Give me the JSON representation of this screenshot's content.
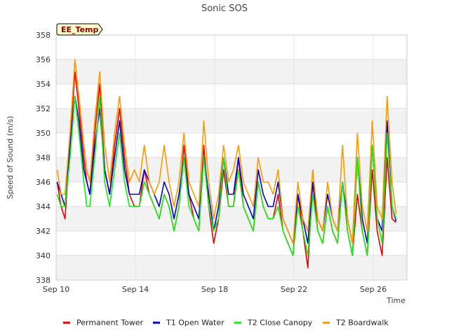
{
  "chart_data": {
    "type": "line",
    "title": "Sonic SOS",
    "badge": "EE_Temp",
    "xlabel": "Time",
    "ylabel": "Speed of Sound (m/s)",
    "xlim": [
      0,
      17.7
    ],
    "ylim": [
      338,
      358
    ],
    "yticks": [
      338,
      340,
      342,
      344,
      346,
      348,
      350,
      352,
      354,
      356,
      358
    ],
    "xticks": [
      {
        "at": 0,
        "label": "Sep 10"
      },
      {
        "at": 4,
        "label": "Sep 14"
      },
      {
        "at": 8,
        "label": "Sep 18"
      },
      {
        "at": 12,
        "label": "Sep 22"
      },
      {
        "at": 16,
        "label": "Sep 26"
      }
    ],
    "grid": true,
    "legend_position": "bottom",
    "series": [
      {
        "name": "Permanent Tower",
        "color": "#ee0000",
        "x": [
          0.05,
          0.25,
          0.45,
          0.7,
          0.95,
          1.15,
          1.4,
          1.55,
          1.7,
          1.95,
          2.2,
          2.45,
          2.7,
          2.95,
          3.2,
          3.45,
          3.7,
          3.95,
          4.2,
          4.45,
          4.7,
          4.95,
          5.2,
          5.45,
          5.7,
          5.95,
          6.2,
          6.45,
          6.7,
          6.95,
          7.2,
          7.45,
          7.7,
          7.95,
          8.2,
          8.45,
          8.7,
          8.95,
          9.2,
          9.45,
          9.7,
          9.95,
          10.2,
          10.45,
          10.7,
          10.95,
          11.2,
          11.45,
          11.7,
          11.95,
          12.2,
          12.45,
          12.7,
          12.95,
          13.2,
          13.45,
          13.7,
          13.95,
          14.2,
          14.45,
          14.7,
          14.95,
          15.2,
          15.45,
          15.7,
          15.95,
          16.2,
          16.45,
          16.7,
          16.95,
          17.15
        ],
        "y": [
          346,
          344,
          343,
          349,
          355,
          352,
          348,
          346,
          345,
          350,
          354,
          347,
          345,
          349,
          352,
          348,
          345,
          344,
          344,
          347,
          345,
          344,
          343,
          345,
          344,
          342,
          344,
          349,
          345,
          343,
          342,
          349,
          344,
          341,
          343,
          347,
          344,
          344,
          348,
          344,
          343,
          342,
          346,
          344,
          343,
          343,
          345,
          342,
          341,
          340,
          345,
          342,
          339,
          346,
          342,
          341,
          344,
          342,
          341,
          346,
          342,
          340,
          345,
          342,
          340,
          347,
          342,
          340,
          348,
          343,
          342.7
        ]
      },
      {
        "name": "T1 Open Water",
        "color": "#0000cc",
        "x": [
          0.05,
          0.25,
          0.45,
          0.7,
          0.95,
          1.15,
          1.4,
          1.55,
          1.7,
          1.95,
          2.2,
          2.45,
          2.7,
          2.95,
          3.2,
          3.45,
          3.7,
          3.95,
          4.2,
          4.45,
          4.7,
          4.95,
          5.2,
          5.45,
          5.7,
          5.95,
          6.2,
          6.45,
          6.7,
          6.95,
          7.2,
          7.45,
          7.7,
          7.95,
          8.2,
          8.45,
          8.7,
          8.95,
          9.2,
          9.45,
          9.7,
          9.95,
          10.2,
          10.45,
          10.7,
          10.95,
          11.2,
          11.45,
          11.7,
          11.95,
          12.2,
          12.45,
          12.7,
          12.95,
          13.2,
          13.45,
          13.7,
          13.95,
          14.2,
          14.45,
          14.7,
          14.95,
          15.2,
          15.45,
          15.7,
          15.95,
          16.2,
          16.45,
          16.7,
          16.95,
          17.15
        ],
        "y": [
          346,
          345,
          344,
          349,
          353,
          351,
          347,
          346,
          345,
          349,
          352,
          347,
          345,
          348,
          351,
          347,
          345,
          345,
          345,
          347,
          346,
          345,
          344,
          346,
          345,
          343,
          345,
          348,
          345,
          344,
          343,
          348,
          345,
          342,
          344,
          348,
          345,
          345,
          348,
          345,
          344,
          343,
          347,
          345,
          344,
          344,
          346,
          343,
          342,
          341,
          345,
          343,
          341,
          346,
          343,
          342,
          345,
          343,
          342,
          346,
          343,
          341,
          348,
          343,
          341,
          349,
          343,
          342,
          351,
          344,
          342.8
        ]
      },
      {
        "name": "T2 Close Canopy",
        "color": "#11ee11",
        "x": [
          0.05,
          0.25,
          0.45,
          0.7,
          0.95,
          1.15,
          1.4,
          1.55,
          1.7,
          1.95,
          2.2,
          2.45,
          2.7,
          2.95,
          3.2,
          3.45,
          3.7,
          3.95,
          4.2,
          4.45,
          4.7,
          4.95,
          5.2,
          5.45,
          5.7,
          5.95,
          6.2,
          6.45,
          6.7,
          6.95,
          7.2,
          7.45,
          7.7,
          7.95,
          8.2,
          8.45,
          8.7,
          8.95,
          9.2,
          9.45,
          9.7,
          9.95,
          10.2,
          10.45,
          10.7,
          10.95,
          11.2,
          11.45,
          11.7,
          11.95,
          12.2,
          12.45,
          12.7,
          12.95,
          13.2,
          13.45,
          13.7,
          13.95,
          14.2,
          14.45,
          14.7,
          14.95,
          15.2,
          15.45,
          15.7,
          15.95,
          16.2,
          16.45,
          16.7,
          16.95,
          17.15
        ],
        "y": [
          345,
          344,
          344,
          348,
          353,
          350,
          346,
          344,
          344,
          348,
          353,
          346,
          344,
          347,
          350,
          346,
          344,
          344,
          344,
          346,
          345,
          344,
          343,
          345,
          344,
          342,
          344,
          348,
          344,
          343,
          342,
          348,
          344,
          342,
          343,
          348,
          344,
          344,
          347,
          344,
          343,
          342,
          346,
          344,
          343,
          343,
          344,
          342,
          341,
          340,
          344,
          342,
          340,
          345,
          342,
          341,
          344,
          342,
          341,
          346,
          342,
          340,
          348,
          342,
          340,
          349,
          343,
          341,
          350,
          344,
          343.0
        ]
      },
      {
        "name": "T2 Boardwalk",
        "color": "#ff9900",
        "x": [
          0.05,
          0.25,
          0.45,
          0.7,
          0.95,
          1.15,
          1.4,
          1.55,
          1.7,
          1.95,
          2.2,
          2.45,
          2.7,
          2.95,
          3.2,
          3.45,
          3.7,
          3.95,
          4.2,
          4.45,
          4.7,
          4.95,
          5.2,
          5.45,
          5.7,
          5.95,
          6.2,
          6.45,
          6.7,
          6.95,
          7.2,
          7.45,
          7.7,
          7.95,
          8.2,
          8.45,
          8.7,
          8.95,
          9.2,
          9.45,
          9.7,
          9.95,
          10.2,
          10.45,
          10.7,
          10.95,
          11.2,
          11.45,
          11.7,
          11.95,
          12.2,
          12.45,
          12.7,
          12.95,
          13.2,
          13.45,
          13.7,
          13.95,
          14.2,
          14.45,
          14.7,
          14.95,
          15.2,
          15.45,
          15.7,
          15.95,
          16.2,
          16.45,
          16.7,
          16.95,
          17.15
        ],
        "y": [
          347,
          345,
          345,
          350,
          356,
          353,
          349,
          347,
          346,
          351,
          355,
          349,
          346,
          350,
          353,
          349,
          346,
          347,
          346,
          349,
          346,
          345,
          346,
          349,
          346,
          344,
          346,
          350,
          346,
          345,
          344,
          351,
          346,
          343,
          345,
          349,
          346,
          347,
          349,
          346,
          345,
          344,
          348,
          346,
          346,
          345,
          347,
          343,
          342,
          341,
          346,
          343,
          342,
          347,
          343,
          342,
          346,
          343,
          342,
          349,
          343,
          341,
          350,
          344,
          342,
          351,
          344,
          343,
          353,
          346,
          343.4
        ]
      }
    ]
  }
}
